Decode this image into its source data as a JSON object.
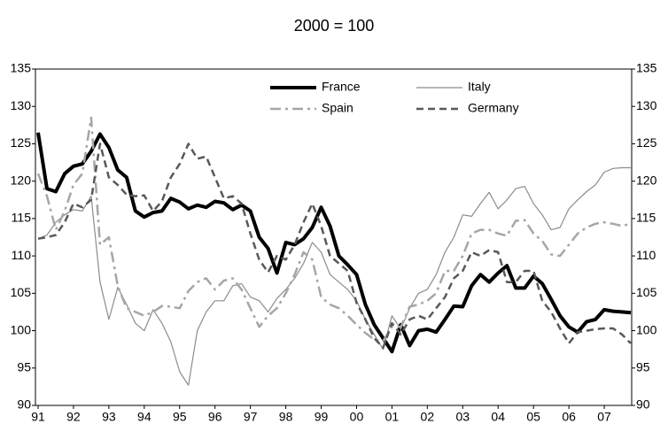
{
  "chart_data": {
    "type": "line",
    "title": "2000 = 100",
    "categories": [
      "91",
      null,
      null,
      null,
      "92",
      null,
      null,
      null,
      "93",
      null,
      null,
      null,
      "94",
      null,
      null,
      null,
      "95",
      null,
      null,
      null,
      "96",
      null,
      null,
      null,
      "97",
      null,
      null,
      null,
      "98",
      null,
      null,
      null,
      "99",
      null,
      null,
      null,
      "00",
      null,
      null,
      null,
      "01",
      null,
      null,
      null,
      "02",
      null,
      null,
      null,
      "03",
      null,
      null,
      null,
      "04",
      null,
      null,
      null,
      "05",
      null,
      null,
      null,
      "06",
      null,
      null,
      null,
      "07",
      null,
      null,
      null
    ],
    "series": [
      {
        "name": "France",
        "color": "#000000",
        "style": "solid-thick",
        "values": [
          126.5,
          119,
          118.6,
          121,
          122,
          122.3,
          124,
          126.3,
          124.5,
          121.5,
          120.5,
          116,
          115.2,
          115.8,
          116,
          117.7,
          117.2,
          116.3,
          116.8,
          116.5,
          117.3,
          117.1,
          116.2,
          116.8,
          116,
          112.5,
          111,
          107.7,
          111.8,
          111.5,
          112.3,
          113.8,
          116.5,
          114,
          110,
          108.8,
          107.5,
          103.5,
          100.8,
          99,
          97.2,
          100.8,
          98,
          100,
          100.2,
          99.8,
          101.5,
          103.3,
          103.2,
          106,
          107.5,
          106.5,
          107.7,
          108.7,
          105.7,
          105.7,
          107.3,
          106.3,
          104.2,
          102,
          100.5,
          99.8,
          101.2,
          101.5,
          102.8,
          102.6,
          102.5,
          102.4
        ]
      },
      {
        "name": "Italy",
        "color": "#8c8c8c",
        "style": "solid-thin",
        "values": [
          112.3,
          112.8,
          114.5,
          115.5,
          116.2,
          116,
          118,
          106.5,
          101.5,
          105.8,
          103.5,
          101,
          100,
          102.8,
          101,
          98.5,
          94.5,
          92.7,
          100,
          102.5,
          104,
          104,
          106,
          106.3,
          104.5,
          104,
          102.5,
          104.3,
          105.5,
          107,
          109,
          111.8,
          110.5,
          107.5,
          106.5,
          105.5,
          104,
          101.5,
          99.5,
          97.5,
          102,
          100.2,
          103,
          105,
          105.5,
          107.5,
          110.5,
          112.5,
          115.5,
          115.3,
          117,
          118.5,
          116.3,
          117.5,
          119,
          119.3,
          117,
          115.5,
          113.5,
          113.8,
          116.3,
          117.5,
          118.6,
          119.5,
          121.2,
          121.7,
          121.8,
          121.8
        ]
      },
      {
        "name": "Spain",
        "color": "#a6a6a6",
        "style": "dashdot",
        "values": [
          121,
          118,
          113.5,
          116,
          119.5,
          121,
          128.5,
          111.5,
          112.5,
          106,
          103,
          102.5,
          102,
          102.5,
          103.3,
          103.2,
          103,
          105.3,
          106.5,
          107,
          105.5,
          106.7,
          107,
          105.5,
          103,
          100.5,
          102,
          103,
          105,
          107.5,
          110.5,
          109.5,
          104.5,
          103.5,
          103,
          102,
          100.8,
          99.7,
          98.8,
          98.6,
          100.5,
          100.5,
          103.2,
          103.5,
          104,
          105,
          108,
          108,
          110,
          113,
          113.5,
          113.5,
          113,
          112.7,
          114.7,
          114.8,
          113,
          112,
          110.2,
          110,
          111.5,
          113,
          113.8,
          114.3,
          114.5,
          114.3,
          114,
          114.3
        ]
      },
      {
        "name": "Germany",
        "color": "#595959",
        "style": "dash",
        "values": [
          112.3,
          112.5,
          112.8,
          114.5,
          117,
          116.5,
          117.5,
          125,
          120.5,
          119.5,
          118.2,
          118,
          118.1,
          116,
          117.3,
          120.5,
          122.3,
          125,
          123,
          123.3,
          120.5,
          117.7,
          118,
          117,
          113,
          109.5,
          107.8,
          110,
          109.5,
          111.5,
          114.5,
          117,
          114,
          110,
          109,
          108,
          103.7,
          101.5,
          99,
          97.7,
          101,
          99.5,
          101.5,
          102,
          101.5,
          103,
          104.5,
          107,
          108,
          110.5,
          110,
          110.8,
          110.5,
          106.5,
          106.5,
          108,
          108,
          104,
          102.5,
          100.3,
          98.3,
          99.8,
          100,
          100.2,
          100.3,
          100.3,
          99.5,
          98.3
        ]
      }
    ],
    "ylim": [
      90,
      135
    ],
    "yticks": [
      90,
      95,
      100,
      105,
      110,
      115,
      120,
      125,
      130,
      135
    ],
    "y2lim": [
      90,
      135
    ],
    "y2ticks": [
      90,
      95,
      100,
      105,
      110,
      115,
      120,
      125,
      130,
      135
    ],
    "grid": false,
    "legend": "top"
  }
}
